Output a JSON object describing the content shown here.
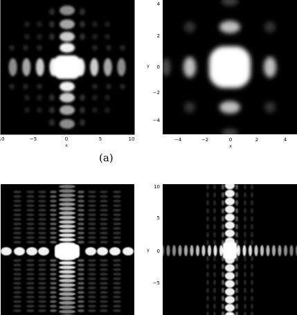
{
  "figure": {
    "caption_a": "(a)",
    "panels": [
      {
        "id": "a-left",
        "kind": "cross",
        "axes": {
          "xlabel": "x",
          "ylabel": "",
          "xticks": [
            "10",
            "−5",
            "0",
            "5",
            "10"
          ],
          "yticks": []
        },
        "lobes": {
          "x_positions": [
            -9,
            -7,
            -5,
            -3,
            0,
            3,
            5,
            7,
            9
          ],
          "y_positions": [
            -9,
            -7,
            -5,
            -3,
            0,
            3,
            5,
            7,
            9
          ]
        }
      },
      {
        "id": "a-right",
        "kind": "blob",
        "axes": {
          "xlabel": "x",
          "ylabel": "y",
          "xticks": [
            "−4",
            "−2",
            "0",
            "2",
            "4"
          ],
          "yticks": [
            "4",
            "2",
            "0",
            "−2",
            "−4"
          ]
        }
      },
      {
        "id": "b-left",
        "kind": "dense-cross",
        "axes": {
          "xlabel": "",
          "ylabel": "",
          "xticks": [],
          "yticks": []
        }
      },
      {
        "id": "b-right",
        "kind": "cross-fine",
        "axes": {
          "xlabel": "",
          "ylabel": "y",
          "xticks": [],
          "yticks": [
            "10",
            "5",
            "0",
            "−5"
          ]
        }
      }
    ]
  }
}
